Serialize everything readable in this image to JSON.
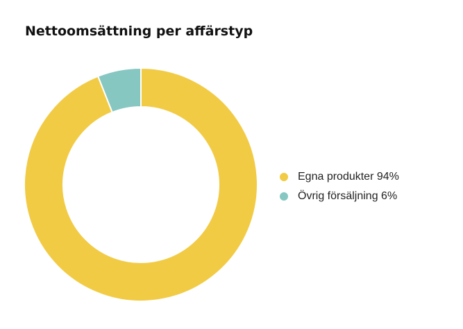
{
  "chart_data": {
    "type": "pie",
    "title": "Nettoomsättning per affärstyp",
    "series": [
      {
        "name": "Egna produkter",
        "value": 94,
        "color": "#f2cb45",
        "legend_label": "Egna produkter 94%"
      },
      {
        "name": "Övrig försäljning",
        "value": 6,
        "color": "#86c7c2",
        "legend_label": "Övrig försäljning 6%"
      }
    ],
    "legend_position": "right"
  }
}
